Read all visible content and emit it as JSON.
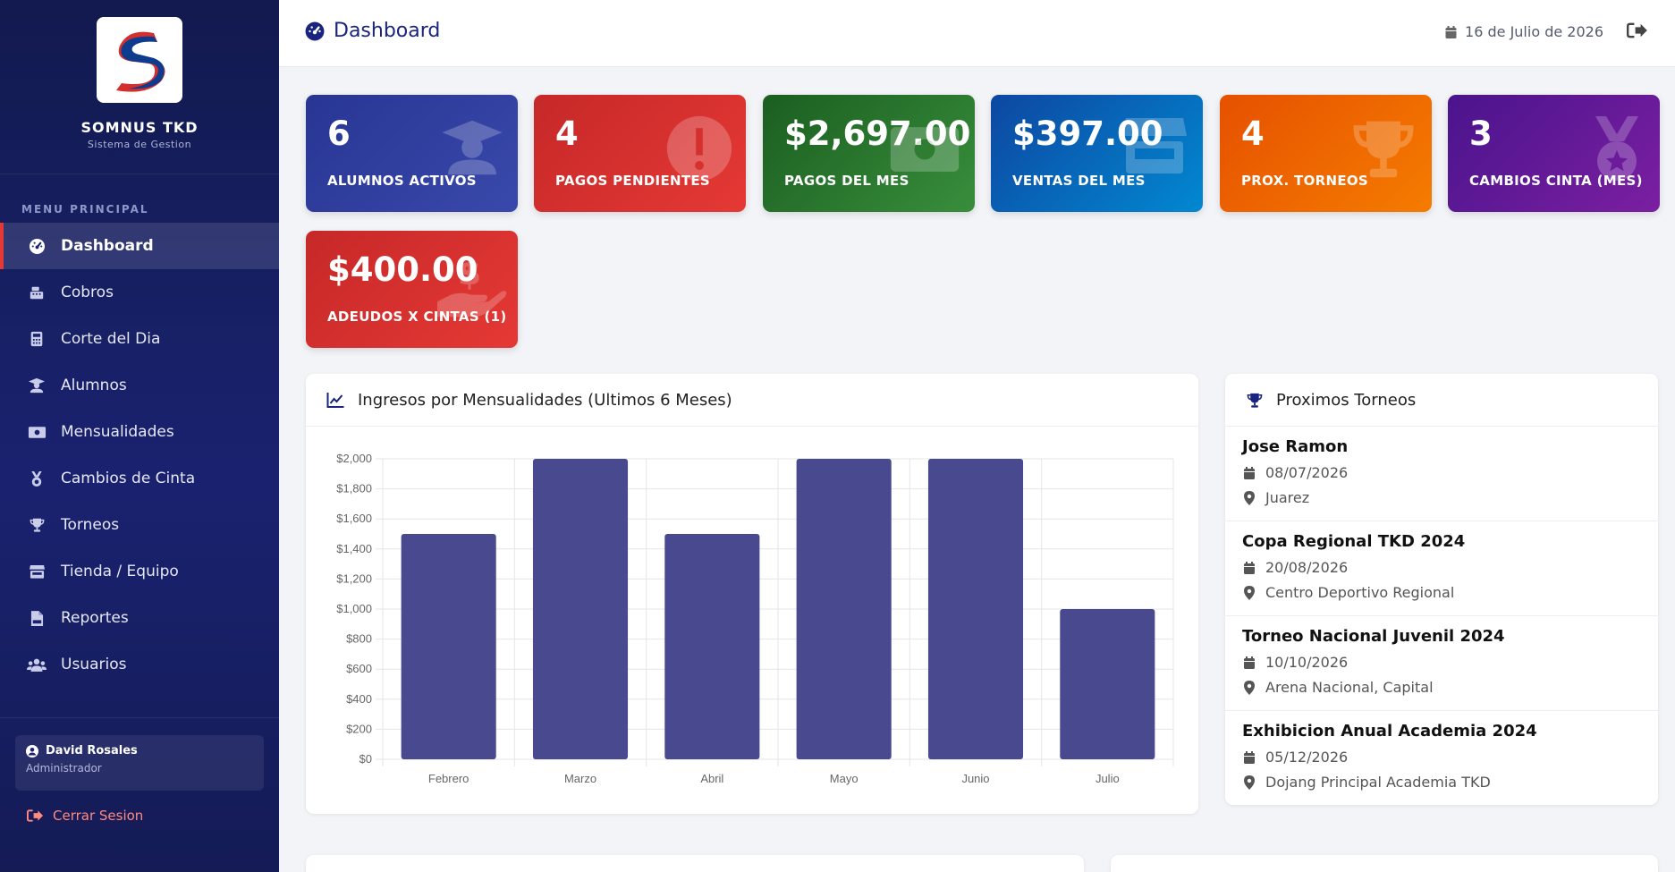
{
  "sidebar": {
    "brand_name": "SOMNUS TKD",
    "brand_sub": "Sistema de Gestion",
    "menu_title": "MENU PRINCIPAL",
    "items": [
      {
        "label": "Dashboard",
        "icon": "gauge-icon"
      },
      {
        "label": "Cobros",
        "icon": "cash-register-icon"
      },
      {
        "label": "Corte del Dia",
        "icon": "calculator-icon"
      },
      {
        "label": "Alumnos",
        "icon": "graduate-icon"
      },
      {
        "label": "Mensualidades",
        "icon": "money-bill-icon"
      },
      {
        "label": "Cambios de Cinta",
        "icon": "medal-icon"
      },
      {
        "label": "Torneos",
        "icon": "trophy-icon"
      },
      {
        "label": "Tienda / Equipo",
        "icon": "store-icon"
      },
      {
        "label": "Reportes",
        "icon": "pdf-file-icon"
      },
      {
        "label": "Usuarios",
        "icon": "users-icon"
      }
    ],
    "user": {
      "name": "David Rosales",
      "role": "Administrador"
    },
    "logout_label": "Cerrar Sesion"
  },
  "header": {
    "title": "Dashboard",
    "date": "16 de Julio de 2026"
  },
  "stats": [
    {
      "value": "6",
      "label": "ALUMNOS ACTIVOS",
      "icon": "graduate-icon",
      "color_from": "#283593",
      "color_to": "#3949ab"
    },
    {
      "value": "4",
      "label": "PAGOS PENDIENTES",
      "icon": "exclamation-circle-icon",
      "color_from": "#c62828",
      "color_to": "#e53935"
    },
    {
      "value": "$2,697.00",
      "label": "PAGOS DEL MES",
      "icon": "money-bill-icon",
      "color_from": "#1b5e20",
      "color_to": "#388e3c"
    },
    {
      "value": "$397.00",
      "label": "VENTAS DEL MES",
      "icon": "store-icon",
      "color_from": "#0d47a1",
      "color_to": "#0288d1"
    },
    {
      "value": "4",
      "label": "PROX. TORNEOS",
      "icon": "trophy-icon",
      "color_from": "#e65100",
      "color_to": "#f57c00"
    },
    {
      "value": "3",
      "label": "CAMBIOS CINTA (MES)",
      "icon": "medal-icon",
      "color_from": "#4a148c",
      "color_to": "#7b1fa2"
    },
    {
      "value": "$400.00",
      "label": "ADEUDOS X CINTAS (1)",
      "icon": "hand-holding-dollar-icon",
      "color_from": "#c62828",
      "color_to": "#e53935"
    }
  ],
  "chart_panel": {
    "title": "Ingresos por Mensualidades (Ultimos 6 Meses)"
  },
  "chart_data": {
    "type": "bar",
    "categories": [
      "Febrero",
      "Marzo",
      "Abril",
      "Mayo",
      "Junio",
      "Julio"
    ],
    "values": [
      1500,
      2000,
      1500,
      2000,
      2000,
      1000
    ],
    "ylim": [
      0,
      2000
    ],
    "yticks": [
      0,
      200,
      400,
      600,
      800,
      1000,
      1200,
      1400,
      1600,
      1800,
      2000
    ],
    "ytick_labels": [
      "$0",
      "$200",
      "$400",
      "$600",
      "$800",
      "$1,000",
      "$1,200",
      "$1,400",
      "$1,600",
      "$1,800",
      "$2,000"
    ],
    "bar_color": "#48498f",
    "grid": true
  },
  "tournaments_panel": {
    "title": "Proximos Torneos",
    "items": [
      {
        "name": "Jose Ramon",
        "date": "08/07/2026",
        "place": "Juarez"
      },
      {
        "name": "Copa Regional TKD 2024",
        "date": "20/08/2026",
        "place": "Centro Deportivo Regional"
      },
      {
        "name": "Torneo Nacional Juvenil 2024",
        "date": "10/10/2026",
        "place": "Arena Nacional, Capital"
      },
      {
        "name": "Exhibicion Anual Academia 2024",
        "date": "05/12/2026",
        "place": "Dojang Principal Academia TKD"
      }
    ]
  }
}
